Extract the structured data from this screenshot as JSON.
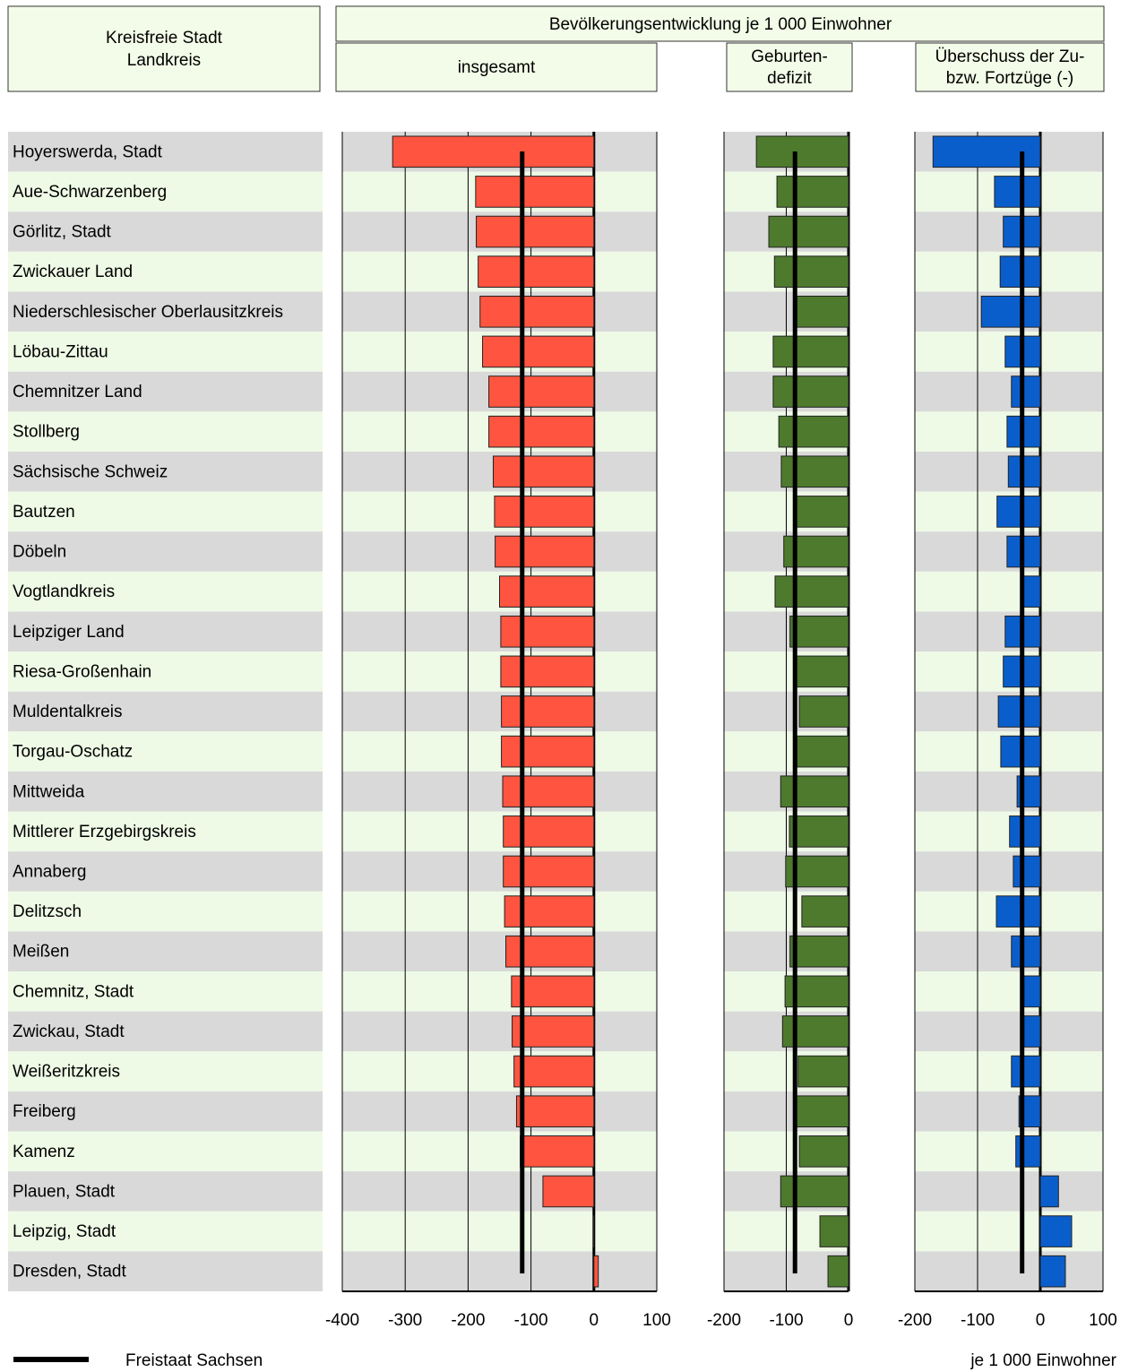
{
  "chart_data": {
    "type": "bar",
    "row_header": [
      "Kreisfreie Stadt",
      "Landkreis"
    ],
    "title": "Bevölkerungsentwicklung je 1 000 Einwohner",
    "unit_label": "je 1 000 Einwohner",
    "reference_name": "Freistaat Sachsen",
    "categories": [
      "Hoyerswerda, Stadt",
      "Aue-Schwarzenberg",
      "Görlitz, Stadt",
      "Zwickauer Land",
      "Niederschlesischer Oberlausitzkreis",
      "Löbau-Zittau",
      "Chemnitzer Land",
      "Stollberg",
      "Sächsische Schweiz",
      "Bautzen",
      "Döbeln",
      "Vogtlandkreis",
      "Leipziger Land",
      "Riesa-Großenhain",
      "Muldentalkreis",
      "Torgau-Oschatz",
      "Mittweida",
      "Mittlerer Erzgebirgskreis",
      "Annaberg",
      "Delitzsch",
      "Meißen",
      "Chemnitz, Stadt",
      "Zwickau, Stadt",
      "Weißeritzkreis",
      "Freiberg",
      "Kamenz",
      "Plauen, Stadt",
      "Leipzig, Stadt",
      "Dresden, Stadt"
    ],
    "panels": [
      {
        "title": [
          "insgesamt"
        ],
        "color": "#ff5540",
        "xlim": [
          -400,
          100
        ],
        "xticks": [
          -400,
          -300,
          -200,
          -100,
          0,
          100
        ],
        "reference": -114,
        "values": [
          -320,
          -188,
          -187,
          -184,
          -181,
          -177,
          -167,
          -167,
          -160,
          -158,
          -157,
          -150,
          -148,
          -148,
          -147,
          -147,
          -145,
          -144,
          -144,
          -142,
          -140,
          -131,
          -130,
          -127,
          -123,
          -117,
          -81,
          -1,
          7
        ]
      },
      {
        "title": [
          "Geburten-",
          "defizit"
        ],
        "color": "#4e7a2e",
        "xlim": [
          -200,
          0
        ],
        "xticks": [
          -200,
          -100,
          0
        ],
        "reference": -86,
        "values": [
          -148,
          -115,
          -128,
          -119,
          -83,
          -121,
          -121,
          -112,
          -108,
          -88,
          -104,
          -118,
          -94,
          -88,
          -79,
          -83,
          -109,
          -95,
          -101,
          -75,
          -94,
          -102,
          -106,
          -81,
          -86,
          -79,
          -109,
          -46,
          -33
        ]
      },
      {
        "title": [
          "Überschuss der Zu-",
          "bzw. Fortzüge (-)"
        ],
        "color": "#0a5ecc",
        "xlim": [
          -200,
          100
        ],
        "xticks": [
          -200,
          -100,
          0,
          100
        ],
        "reference": -29,
        "values": [
          -171,
          -73,
          -59,
          -64,
          -94,
          -56,
          -46,
          -53,
          -51,
          -69,
          -53,
          -31,
          -56,
          -59,
          -67,
          -63,
          -37,
          -49,
          -43,
          -70,
          -46,
          -26,
          -26,
          -46,
          -34,
          -39,
          29,
          50,
          40
        ]
      }
    ]
  }
}
